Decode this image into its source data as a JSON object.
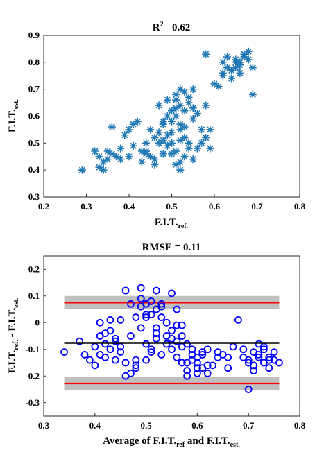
{
  "chart_data": [
    {
      "type": "scatter",
      "title": "R",
      "title_sup": "2",
      "title_rest": "= 0.62",
      "xlabel": "F.I.T.",
      "xlabel_sub": "ref.",
      "ylabel": "F.I.T.",
      "ylabel_sub": "est.",
      "xlim": [
        0.2,
        0.8
      ],
      "ylim": [
        0.3,
        0.9
      ],
      "xticks": [
        "0.2",
        "0.3",
        "0.4",
        "0.5",
        "0.6",
        "0.7",
        "0.8"
      ],
      "yticks": [
        "0.3",
        "0.4",
        "0.5",
        "0.6",
        "0.7",
        "0.8",
        "0.9"
      ],
      "marker": "asterisk",
      "color": "#1f77b4",
      "grid": false,
      "x": [
        0.29,
        0.32,
        0.33,
        0.34,
        0.35,
        0.36,
        0.36,
        0.38,
        0.39,
        0.4,
        0.4,
        0.41,
        0.42,
        0.43,
        0.44,
        0.44,
        0.45,
        0.45,
        0.46,
        0.46,
        0.47,
        0.47,
        0.48,
        0.48,
        0.48,
        0.49,
        0.49,
        0.5,
        0.5,
        0.5,
        0.51,
        0.51,
        0.52,
        0.52,
        0.52,
        0.53,
        0.53,
        0.53,
        0.54,
        0.54,
        0.55,
        0.55,
        0.56,
        0.57,
        0.58,
        0.58,
        0.59,
        0.59,
        0.6,
        0.61,
        0.62,
        0.62,
        0.63,
        0.64,
        0.65,
        0.65,
        0.66,
        0.66,
        0.67,
        0.68,
        0.69,
        0.69,
        0.34,
        0.37,
        0.41,
        0.43,
        0.47,
        0.49,
        0.51,
        0.52,
        0.53,
        0.5,
        0.49,
        0.52,
        0.54,
        0.55,
        0.51,
        0.48,
        0.56,
        0.57,
        0.46,
        0.44,
        0.38,
        0.35,
        0.33,
        0.52,
        0.53,
        0.51,
        0.5,
        0.54,
        0.55,
        0.66,
        0.64,
        0.67,
        0.63,
        0.62,
        0.65,
        0.68,
        0.52,
        0.51,
        0.58
      ],
      "y": [
        0.4,
        0.47,
        0.45,
        0.43,
        0.47,
        0.56,
        0.46,
        0.44,
        0.53,
        0.55,
        0.45,
        0.57,
        0.58,
        0.43,
        0.5,
        0.47,
        0.55,
        0.45,
        0.52,
        0.44,
        0.5,
        0.64,
        0.58,
        0.46,
        0.51,
        0.66,
        0.49,
        0.62,
        0.5,
        0.46,
        0.68,
        0.47,
        0.64,
        0.55,
        0.43,
        0.69,
        0.56,
        0.45,
        0.65,
        0.5,
        0.7,
        0.44,
        0.48,
        0.55,
        0.64,
        0.83,
        0.55,
        0.48,
        0.72,
        0.71,
        0.8,
        0.75,
        0.78,
        0.74,
        0.81,
        0.78,
        0.8,
        0.76,
        0.82,
        0.84,
        0.68,
        0.78,
        0.4,
        0.45,
        0.49,
        0.47,
        0.54,
        0.6,
        0.66,
        0.7,
        0.62,
        0.58,
        0.53,
        0.51,
        0.48,
        0.59,
        0.63,
        0.57,
        0.61,
        0.5,
        0.42,
        0.46,
        0.48,
        0.44,
        0.41,
        0.57,
        0.52,
        0.6,
        0.54,
        0.67,
        0.63,
        0.79,
        0.77,
        0.83,
        0.82,
        0.76,
        0.8,
        0.81,
        0.4,
        0.42,
        0.52
      ]
    },
    {
      "type": "scatter",
      "title": "RMSE = 0.11",
      "xlabel": "Average of F.I.T.",
      "xlabel_sub1": "ref",
      "xlabel_mid": " and F.I.T.",
      "xlabel_sub2": "est.",
      "ylabel": "F.I.T.",
      "ylabel_sub1": "ref.",
      "ylabel_mid": " - F.I.T.",
      "ylabel_sub2": "est.",
      "xlim": [
        0.3,
        0.8
      ],
      "ylim": [
        -0.35,
        0.25
      ],
      "xticks": [
        "0.3",
        "0.4",
        "0.5",
        "0.6",
        "0.7",
        "0.8"
      ],
      "yticks": [
        "0.2",
        "0.1",
        "0",
        "-0.1",
        "-0.2",
        "-0.3"
      ],
      "ytick_values": [
        0.2,
        0.1,
        0,
        -0.1,
        -0.2,
        -0.3
      ],
      "marker": "circle",
      "color": "#0000ff",
      "mean_line": -0.076,
      "upper_limit": 0.075,
      "lower_limit": -0.228,
      "limit_band": 0.025,
      "line_x": [
        0.34,
        0.76
      ],
      "mean_color": "#000000",
      "limit_color": "#ff0000",
      "band_color": "#bfbfbf",
      "grid": false,
      "x": [
        0.34,
        0.37,
        0.38,
        0.39,
        0.4,
        0.4,
        0.41,
        0.41,
        0.42,
        0.42,
        0.43,
        0.43,
        0.44,
        0.44,
        0.45,
        0.45,
        0.46,
        0.46,
        0.47,
        0.47,
        0.48,
        0.48,
        0.49,
        0.49,
        0.5,
        0.5,
        0.5,
        0.51,
        0.51,
        0.52,
        0.52,
        0.52,
        0.53,
        0.53,
        0.54,
        0.54,
        0.55,
        0.55,
        0.56,
        0.56,
        0.57,
        0.57,
        0.58,
        0.58,
        0.59,
        0.59,
        0.6,
        0.6,
        0.61,
        0.61,
        0.62,
        0.63,
        0.64,
        0.65,
        0.66,
        0.67,
        0.68,
        0.69,
        0.7,
        0.7,
        0.71,
        0.71,
        0.72,
        0.72,
        0.73,
        0.73,
        0.74,
        0.74,
        0.75,
        0.76,
        0.46,
        0.48,
        0.49,
        0.51,
        0.53,
        0.55,
        0.47,
        0.5,
        0.52,
        0.54,
        0.57,
        0.59,
        0.61,
        0.58,
        0.56,
        0.6,
        0.62,
        0.45,
        0.44,
        0.43,
        0.42,
        0.41,
        0.71,
        0.72,
        0.73,
        0.7,
        0.74,
        0.75,
        0.5,
        0.52,
        0.49,
        0.51,
        0.48,
        0.53,
        0.55,
        0.56,
        0.57,
        0.64,
        0.66,
        0.69,
        0.6,
        0.62,
        0.58
      ],
      "y": [
        -0.11,
        -0.07,
        -0.12,
        -0.14,
        -0.09,
        -0.16,
        -0.05,
        -0.12,
        -0.08,
        -0.13,
        -0.1,
        0.01,
        -0.06,
        -0.14,
        -0.09,
        0.01,
        -0.15,
        0.12,
        -0.05,
        0.07,
        -0.17,
        0.02,
        0.13,
        -0.02,
        0.07,
        -0.14,
        -0.08,
        0.03,
        -0.1,
        0.12,
        0.05,
        -0.04,
        0.06,
        -0.12,
        0.0,
        -0.08,
        -0.03,
        -0.1,
        0.05,
        -0.13,
        -0.05,
        -0.15,
        -0.08,
        -0.18,
        -0.14,
        -0.1,
        -0.15,
        -0.19,
        -0.12,
        -0.17,
        -0.1,
        -0.16,
        -0.13,
        -0.12,
        -0.17,
        -0.09,
        0.01,
        -0.13,
        -0.15,
        -0.25,
        -0.11,
        -0.16,
        -0.13,
        -0.08,
        -0.15,
        -0.1,
        -0.14,
        -0.17,
        -0.14,
        -0.15,
        -0.2,
        -0.16,
        0.06,
        0.08,
        0.07,
        0.11,
        -0.19,
        0.03,
        -0.02,
        -0.05,
        -0.01,
        -0.12,
        -0.11,
        -0.2,
        -0.07,
        -0.13,
        -0.16,
        -0.11,
        -0.07,
        -0.03,
        -0.04,
        0.0,
        -0.18,
        -0.12,
        -0.09,
        -0.14,
        -0.13,
        -0.11,
        0.02,
        -0.06,
        0.09,
        -0.11,
        -0.14,
        0.02,
        -0.06,
        -0.01,
        -0.09,
        -0.11,
        -0.13,
        -0.1,
        -0.17,
        -0.19,
        -0.15
      ]
    }
  ]
}
